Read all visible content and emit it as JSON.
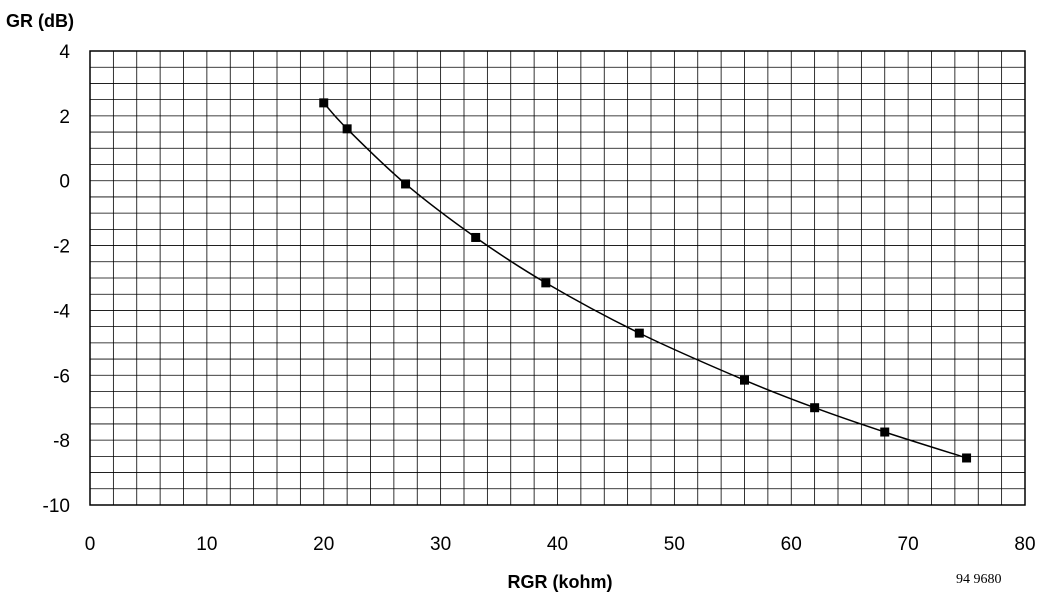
{
  "chart_data": {
    "type": "line",
    "xlabel": "RGR (kohm)",
    "ylabel": "GR (dB)",
    "xlim": [
      0,
      80
    ],
    "ylim": [
      -10,
      4
    ],
    "x_ticks": [
      0,
      10,
      20,
      30,
      40,
      50,
      60,
      70,
      80
    ],
    "y_ticks": [
      4,
      2,
      0,
      -2,
      -4,
      -6,
      -8,
      -10
    ],
    "x_tick_labels": [
      "0",
      "10",
      "20",
      "30",
      "40",
      "50",
      "60",
      "70",
      "80"
    ],
    "y_tick_labels": [
      "4",
      "2",
      "0",
      "-2",
      "-4",
      "-6",
      "-8",
      "-10"
    ],
    "grid": true,
    "x_minor_step": 2,
    "y_minor_step": 0.5,
    "marker": "square",
    "series": [
      {
        "x": [
          20,
          22,
          27,
          33,
          39,
          47,
          56,
          62,
          68,
          75
        ],
        "y": [
          2.4,
          1.6,
          -0.1,
          -1.75,
          -3.15,
          -4.7,
          -6.15,
          -7.0,
          -7.75,
          -8.55
        ]
      }
    ]
  },
  "figure_id": "94 9680",
  "colors": {
    "line": "#000000",
    "grid": "#000000",
    "background": "#ffffff"
  }
}
